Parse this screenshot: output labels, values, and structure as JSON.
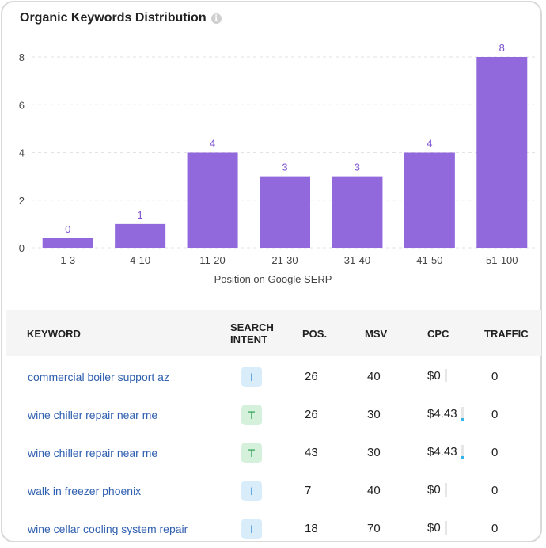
{
  "widget": {
    "title": "Organic Keywords Distribution",
    "info_glyph": "i"
  },
  "chart_data": {
    "type": "bar",
    "title": "Organic Keywords Distribution",
    "xlabel": "Position on Google SERP",
    "ylabel": "",
    "categories": [
      "1-3",
      "4-10",
      "11-20",
      "21-30",
      "31-40",
      "41-50",
      "51-100"
    ],
    "values": [
      0,
      1,
      4,
      3,
      3,
      4,
      8
    ],
    "data_labels": [
      "0",
      "1",
      "4",
      "3",
      "3",
      "4",
      "8"
    ],
    "yticks": [
      0,
      2,
      4,
      6,
      8
    ],
    "ylim": [
      0,
      8
    ],
    "grid": true,
    "bar_color": "#9169dc",
    "label_color": "#7b4fd0"
  },
  "table": {
    "headers": {
      "keyword": "KEYWORD",
      "intent_line1": "SEARCH",
      "intent_line2": "INTENT",
      "pos": "POS.",
      "msv": "MSV",
      "cpc": "CPC",
      "traffic": "TRAFFIC"
    },
    "rows": [
      {
        "keyword": "commercial boiler support az",
        "intent": "I",
        "pos": "26",
        "msv": "40",
        "cpc": "$0",
        "cpc_level": 0,
        "traffic": "0"
      },
      {
        "keyword": "wine chiller repair near me",
        "intent": "T",
        "pos": "26",
        "msv": "30",
        "cpc": "$4.43",
        "cpc_level": 0.15,
        "traffic": "0"
      },
      {
        "keyword": "wine chiller repair near me",
        "intent": "T",
        "pos": "43",
        "msv": "30",
        "cpc": "$4.43",
        "cpc_level": 0.15,
        "traffic": "0"
      },
      {
        "keyword": "walk in freezer phoenix",
        "intent": "I",
        "pos": "7",
        "msv": "40",
        "cpc": "$0",
        "cpc_level": 0,
        "traffic": "0"
      },
      {
        "keyword": "wine cellar cooling system repair",
        "intent": "I",
        "pos": "18",
        "msv": "70",
        "cpc": "$0",
        "cpc_level": 0,
        "traffic": "0"
      }
    ]
  }
}
